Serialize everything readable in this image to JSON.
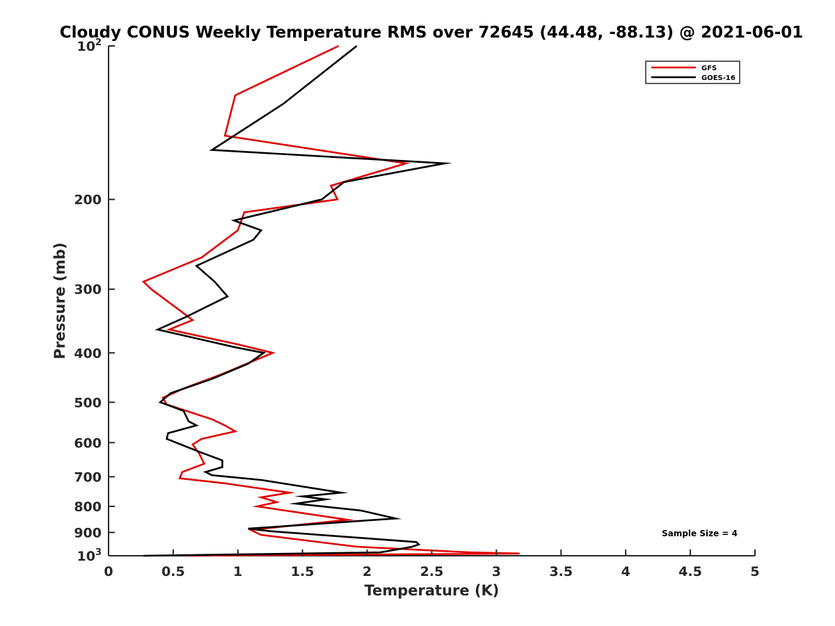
{
  "chart_data": {
    "type": "line",
    "title": "Cloudy CONUS Weekly Temperature RMS over 72645 (44.48, -88.13) @ 2021-06-01",
    "xlabel": "Temperature (K)",
    "ylabel": "Pressure (mb)",
    "xlim": [
      0,
      5
    ],
    "ylim": [
      100,
      1000
    ],
    "y_scale": "log",
    "y_reversed": true,
    "grid": false,
    "legend_position": "top-right",
    "x_ticks": [
      {
        "value": 0,
        "label": "0"
      },
      {
        "value": 0.5,
        "label": "0.5"
      },
      {
        "value": 1,
        "label": "1"
      },
      {
        "value": 1.5,
        "label": "1.5"
      },
      {
        "value": 2,
        "label": "2"
      },
      {
        "value": 2.5,
        "label": "2.5"
      },
      {
        "value": 3,
        "label": "3"
      },
      {
        "value": 3.5,
        "label": "3.5"
      },
      {
        "value": 4,
        "label": "4"
      },
      {
        "value": 4.5,
        "label": "4.5"
      },
      {
        "value": 5,
        "label": "5"
      }
    ],
    "y_ticks": [
      {
        "value": 100,
        "label": "10",
        "sup": "2"
      },
      {
        "value": 200,
        "label": "200"
      },
      {
        "value": 300,
        "label": "300"
      },
      {
        "value": 400,
        "label": "400"
      },
      {
        "value": 500,
        "label": "500"
      },
      {
        "value": 600,
        "label": "600"
      },
      {
        "value": 700,
        "label": "700"
      },
      {
        "value": 800,
        "label": "800"
      },
      {
        "value": 900,
        "label": "900"
      },
      {
        "value": 1000,
        "label": "10",
        "sup": "3"
      }
    ],
    "series": [
      {
        "name": "GFS",
        "color": "#e00000",
        "points": [
          [
            1.78,
            100
          ],
          [
            0.98,
            125
          ],
          [
            0.9,
            150
          ],
          [
            2.3,
            170
          ],
          [
            1.72,
            188
          ],
          [
            1.77,
            200
          ],
          [
            1.05,
            212
          ],
          [
            1.0,
            230
          ],
          [
            0.72,
            260
          ],
          [
            0.27,
            290
          ],
          [
            0.33,
            300
          ],
          [
            0.55,
            330
          ],
          [
            0.65,
            345
          ],
          [
            0.47,
            360
          ],
          [
            1.0,
            385
          ],
          [
            1.27,
            400
          ],
          [
            1.12,
            415
          ],
          [
            0.88,
            440
          ],
          [
            0.58,
            470
          ],
          [
            0.42,
            490
          ],
          [
            0.45,
            505
          ],
          [
            0.8,
            540
          ],
          [
            0.9,
            555
          ],
          [
            0.98,
            570
          ],
          [
            0.72,
            590
          ],
          [
            0.65,
            605
          ],
          [
            0.7,
            630
          ],
          [
            0.74,
            660
          ],
          [
            0.57,
            685
          ],
          [
            0.55,
            705
          ],
          [
            0.88,
            720
          ],
          [
            1.4,
            752
          ],
          [
            1.18,
            768
          ],
          [
            1.3,
            785
          ],
          [
            1.15,
            800
          ],
          [
            1.85,
            850
          ],
          [
            1.1,
            890
          ],
          [
            1.18,
            910
          ],
          [
            1.7,
            945
          ],
          [
            1.92,
            960
          ],
          [
            2.8,
            985
          ],
          [
            3.18,
            990
          ],
          [
            0.6,
            1000
          ]
        ]
      },
      {
        "name": "GOES-16",
        "color": "#000000",
        "points": [
          [
            1.92,
            100
          ],
          [
            1.35,
            130
          ],
          [
            0.8,
            160
          ],
          [
            2.6,
            170
          ],
          [
            1.82,
            185
          ],
          [
            1.65,
            200
          ],
          [
            0.97,
            220
          ],
          [
            1.18,
            230
          ],
          [
            1.12,
            240
          ],
          [
            0.68,
            270
          ],
          [
            0.82,
            290
          ],
          [
            0.92,
            310
          ],
          [
            0.6,
            340
          ],
          [
            0.38,
            360
          ],
          [
            0.98,
            390
          ],
          [
            1.2,
            400
          ],
          [
            1.08,
            420
          ],
          [
            0.8,
            450
          ],
          [
            0.48,
            480
          ],
          [
            0.4,
            500
          ],
          [
            0.58,
            520
          ],
          [
            0.62,
            545
          ],
          [
            0.68,
            555
          ],
          [
            0.46,
            575
          ],
          [
            0.45,
            590
          ],
          [
            0.7,
            625
          ],
          [
            0.88,
            650
          ],
          [
            0.88,
            670
          ],
          [
            0.75,
            685
          ],
          [
            0.8,
            695
          ],
          [
            1.18,
            710
          ],
          [
            1.8,
            752
          ],
          [
            1.5,
            765
          ],
          [
            1.68,
            775
          ],
          [
            1.45,
            790
          ],
          [
            1.95,
            815
          ],
          [
            2.22,
            845
          ],
          [
            1.08,
            885
          ],
          [
            1.25,
            895
          ],
          [
            2.38,
            940
          ],
          [
            2.4,
            950
          ],
          [
            2.35,
            960
          ],
          [
            2.15,
            980
          ],
          [
            2.1,
            985
          ],
          [
            0.27,
            1000
          ]
        ]
      }
    ],
    "annotations": [
      "Sample Size = 4"
    ]
  }
}
